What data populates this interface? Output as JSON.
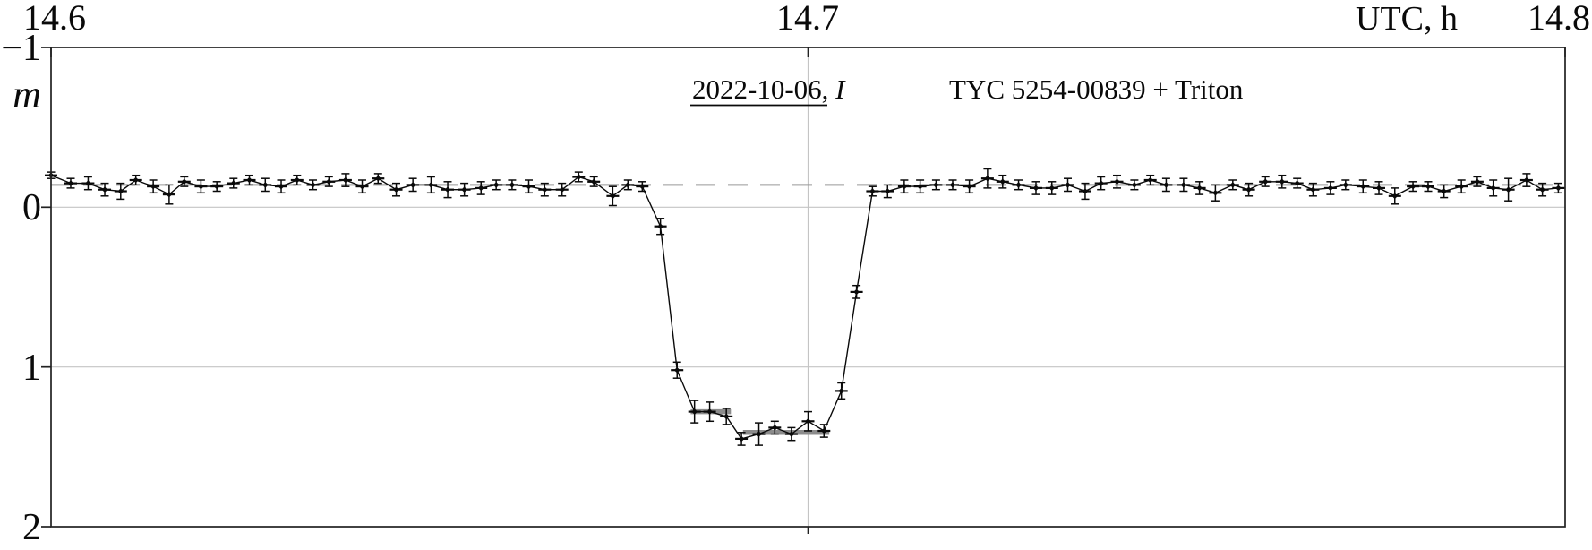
{
  "page": {
    "background": "#ffffff"
  },
  "chart_data": {
    "type": "scatter",
    "description": "Occultation light curve: magnitude vs UTC time with error bars, dashed baseline level and thick gray model segments at the occultation bottom",
    "annotations": {
      "date_label": "2022-10-06",
      "date_separator": ", ",
      "filter_label": "I",
      "target_label": "TYC 5254-00839 + Triton"
    },
    "x_axis": {
      "label": "UTC, h",
      "min": 14.6,
      "max": 14.8,
      "position": "top",
      "ticks": [
        {
          "value": 14.6,
          "label": "14.6"
        },
        {
          "value": 14.7,
          "label": "14.7"
        },
        {
          "value": 14.8,
          "label": "14.8"
        }
      ]
    },
    "y_axis": {
      "label": "m",
      "min": -1,
      "max": 2,
      "inverted": true,
      "ticks": [
        {
          "value": -1,
          "label": "−1"
        },
        {
          "value": 0,
          "label": "0"
        },
        {
          "value": 1,
          "label": "1"
        },
        {
          "value": 2,
          "label": "2"
        }
      ]
    },
    "gridlines": {
      "horizontal_at": [
        0,
        1
      ],
      "vertical_at": [
        14.7
      ]
    },
    "baseline": {
      "level": -0.14,
      "style": "dashed"
    },
    "model_segments": [
      {
        "t_start": 14.6845,
        "t_end": 14.6898,
        "m": 1.28
      },
      {
        "t_start": 14.6914,
        "t_end": 14.7028,
        "m": 1.41
      }
    ],
    "colors": {
      "data": "#0a0a0a",
      "grid": "#c4c4c4",
      "dashed": "#999999",
      "model": "#8c8c8c",
      "axis": "#222222"
    },
    "point_format": [
      "t_utc_h",
      "mag",
      "err_mag"
    ],
    "series": [
      {
        "name": "light-curve",
        "points": [
          [
            14.6,
            -0.2,
            0.02
          ],
          [
            14.6026,
            -0.15,
            0.03
          ],
          [
            14.6049,
            -0.15,
            0.04
          ],
          [
            14.6071,
            -0.11,
            0.04
          ],
          [
            14.6092,
            -0.1,
            0.05
          ],
          [
            14.6112,
            -0.17,
            0.03
          ],
          [
            14.6135,
            -0.13,
            0.04
          ],
          [
            14.6156,
            -0.08,
            0.06
          ],
          [
            14.6176,
            -0.16,
            0.03
          ],
          [
            14.6198,
            -0.13,
            0.04
          ],
          [
            14.6219,
            -0.13,
            0.03
          ],
          [
            14.6241,
            -0.15,
            0.03
          ],
          [
            14.6262,
            -0.17,
            0.03
          ],
          [
            14.6283,
            -0.14,
            0.04
          ],
          [
            14.6304,
            -0.13,
            0.04
          ],
          [
            14.6325,
            -0.17,
            0.03
          ],
          [
            14.6346,
            -0.14,
            0.03
          ],
          [
            14.6367,
            -0.16,
            0.03
          ],
          [
            14.6389,
            -0.17,
            0.04
          ],
          [
            14.6411,
            -0.13,
            0.04
          ],
          [
            14.6432,
            -0.18,
            0.03
          ],
          [
            14.6456,
            -0.11,
            0.04
          ],
          [
            14.6478,
            -0.14,
            0.04
          ],
          [
            14.6502,
            -0.14,
            0.05
          ],
          [
            14.6524,
            -0.11,
            0.05
          ],
          [
            14.6546,
            -0.11,
            0.04
          ],
          [
            14.6568,
            -0.12,
            0.04
          ],
          [
            14.6588,
            -0.14,
            0.03
          ],
          [
            14.6609,
            -0.14,
            0.03
          ],
          [
            14.6631,
            -0.13,
            0.04
          ],
          [
            14.6652,
            -0.11,
            0.04
          ],
          [
            14.6675,
            -0.11,
            0.04
          ],
          [
            14.6697,
            -0.19,
            0.03
          ],
          [
            14.6717,
            -0.16,
            0.03
          ],
          [
            14.6742,
            -0.07,
            0.06
          ],
          [
            14.6762,
            -0.14,
            0.03
          ],
          [
            14.6781,
            -0.13,
            0.03
          ],
          [
            14.6805,
            0.12,
            0.05
          ],
          [
            14.6827,
            1.02,
            0.05
          ],
          [
            14.685,
            1.28,
            0.07
          ],
          [
            14.687,
            1.28,
            0.06
          ],
          [
            14.6892,
            1.31,
            0.05
          ],
          [
            14.6912,
            1.45,
            0.04
          ],
          [
            14.6935,
            1.42,
            0.07
          ],
          [
            14.6956,
            1.38,
            0.04
          ],
          [
            14.6978,
            1.42,
            0.04
          ],
          [
            14.7,
            1.34,
            0.06
          ],
          [
            14.7021,
            1.4,
            0.04
          ],
          [
            14.7044,
            1.15,
            0.05
          ],
          [
            14.7064,
            0.53,
            0.04
          ],
          [
            14.7085,
            -0.1,
            0.03
          ],
          [
            14.7105,
            -0.1,
            0.04
          ],
          [
            14.7127,
            -0.13,
            0.04
          ],
          [
            14.7148,
            -0.13,
            0.04
          ],
          [
            14.7169,
            -0.14,
            0.03
          ],
          [
            14.7191,
            -0.14,
            0.03
          ],
          [
            14.7213,
            -0.13,
            0.04
          ],
          [
            14.7237,
            -0.18,
            0.06
          ],
          [
            14.7257,
            -0.16,
            0.04
          ],
          [
            14.7278,
            -0.14,
            0.03
          ],
          [
            14.7301,
            -0.12,
            0.04
          ],
          [
            14.7322,
            -0.12,
            0.04
          ],
          [
            14.7343,
            -0.14,
            0.04
          ],
          [
            14.7366,
            -0.1,
            0.05
          ],
          [
            14.7387,
            -0.15,
            0.04
          ],
          [
            14.7408,
            -0.16,
            0.04
          ],
          [
            14.7431,
            -0.14,
            0.03
          ],
          [
            14.7452,
            -0.17,
            0.03
          ],
          [
            14.7473,
            -0.14,
            0.04
          ],
          [
            14.7496,
            -0.14,
            0.04
          ],
          [
            14.7517,
            -0.12,
            0.04
          ],
          [
            14.7538,
            -0.09,
            0.05
          ],
          [
            14.7561,
            -0.14,
            0.03
          ],
          [
            14.7582,
            -0.11,
            0.04
          ],
          [
            14.7604,
            -0.16,
            0.03
          ],
          [
            14.7626,
            -0.16,
            0.04
          ],
          [
            14.7646,
            -0.15,
            0.03
          ],
          [
            14.7667,
            -0.11,
            0.04
          ],
          [
            14.769,
            -0.12,
            0.04
          ],
          [
            14.771,
            -0.14,
            0.03
          ],
          [
            14.7733,
            -0.13,
            0.04
          ],
          [
            14.7754,
            -0.12,
            0.04
          ],
          [
            14.7775,
            -0.07,
            0.05
          ],
          [
            14.7799,
            -0.13,
            0.03
          ],
          [
            14.7819,
            -0.13,
            0.03
          ],
          [
            14.784,
            -0.1,
            0.04
          ],
          [
            14.7863,
            -0.13,
            0.04
          ],
          [
            14.7884,
            -0.16,
            0.03
          ],
          [
            14.7905,
            -0.12,
            0.05
          ],
          [
            14.7925,
            -0.11,
            0.07
          ],
          [
            14.7949,
            -0.17,
            0.04
          ],
          [
            14.797,
            -0.11,
            0.04
          ],
          [
            14.7991,
            -0.12,
            0.03
          ]
        ]
      }
    ]
  }
}
